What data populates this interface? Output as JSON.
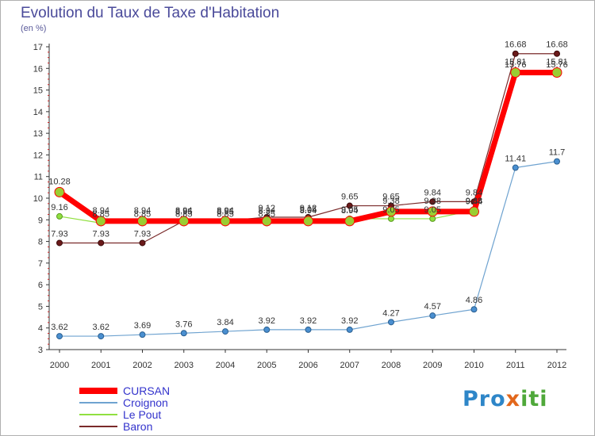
{
  "title": "Evolution du Taux de Taxe d'Habitation",
  "subtitle": "(en %)",
  "logo": "Proxiti",
  "colors": {
    "CURSAN": "#ff0000",
    "Croignon": "#6fa3d0",
    "Le Pout": "#90e040",
    "Baron": "#7a2a2a"
  },
  "chart_data": {
    "type": "line",
    "title": "Evolution du Taux de Taxe d'Habitation",
    "ylabel": "(en %)",
    "xlabel": "",
    "x": [
      "2000",
      "2001",
      "2002",
      "2003",
      "2004",
      "2005",
      "2006",
      "2007",
      "2008",
      "2009",
      "2010",
      "2011",
      "2012"
    ],
    "ylim": [
      3,
      17
    ],
    "yticks": [
      "3",
      "4",
      "5",
      "6",
      "7",
      "8",
      "9",
      "10",
      "11",
      "12",
      "13",
      "14",
      "15",
      "16",
      "17"
    ],
    "series": [
      {
        "name": "CURSAN",
        "values": [
          10.28,
          8.94,
          8.94,
          8.94,
          8.94,
          8.94,
          8.94,
          8.94,
          9.38,
          9.38,
          9.38,
          15.81,
          15.81
        ],
        "labels": [
          "10.28",
          "8.94",
          "8.94",
          "8.94",
          "8.94",
          "8.94",
          "8.94",
          "8.94",
          "9.38",
          "9.38",
          "9.38",
          "15.81",
          "15.81"
        ]
      },
      {
        "name": "Croignon",
        "values": [
          3.62,
          3.62,
          3.69,
          3.76,
          3.84,
          3.92,
          3.92,
          3.92,
          4.27,
          4.57,
          4.86,
          11.41,
          11.7
        ],
        "labels": [
          "3.62",
          "3.62",
          "3.69",
          "3.76",
          "3.84",
          "3.92",
          "3.92",
          "3.92",
          "4.27",
          "4.57",
          "4.86",
          "11.41",
          "11.7"
        ]
      },
      {
        "name": "Le Pout",
        "values": [
          9.16,
          8.85,
          8.85,
          8.85,
          8.85,
          8.85,
          9.05,
          9.05,
          9.05,
          9.05,
          9.44,
          15.76,
          15.76
        ],
        "labels": [
          "9.16",
          "8.85",
          "8.85",
          "8.85",
          "8.85",
          "8.85",
          "9.05",
          "9.05",
          "9.05",
          "9.05",
          "9.44",
          "15.76",
          "15.76"
        ]
      },
      {
        "name": "Baron",
        "values": [
          7.93,
          7.93,
          7.93,
          8.95,
          8.95,
          9.12,
          9.12,
          9.65,
          9.65,
          9.84,
          9.84,
          16.68,
          16.68
        ],
        "labels": [
          "7.93",
          "7.93",
          "7.93",
          "8.95",
          "8.95",
          "9.12",
          "9.12",
          "9.65",
          "9.65",
          "9.84",
          "9.84",
          "16.68",
          "16.68"
        ]
      }
    ],
    "grid": false,
    "legend": "bottom-left"
  }
}
